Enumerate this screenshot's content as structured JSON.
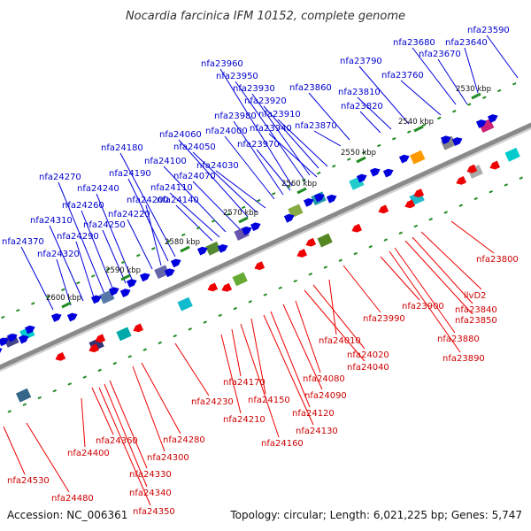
{
  "title": "Nocardia farcinica IFM 10152, complete genome",
  "accession": "Accession: NC_006361",
  "topology": "Topology: circular; Length: 6,021,225 bp; Genes: 5,747",
  "colors": {
    "forward": "#0000dd",
    "reverse": "#ee0000",
    "backbone": "#8a8a8a",
    "tick": "#228b22"
  },
  "kbp_labels": [
    "2530 kbp",
    "2540 kbp",
    "2550 kbp",
    "2560 kbp",
    "2570 kbp",
    "2580 kbp",
    "2590 kbp",
    "2600 kbp"
  ],
  "top_labels": [
    "nfa23590",
    "nfa23640",
    "nfa23670",
    "nfa23680",
    "nfa23760",
    "nfa23790",
    "nfa23810",
    "nfa23820",
    "nfa23860",
    "nfa23870",
    "nfa23910",
    "nfa23920",
    "nfa23930",
    "nfa23940",
    "nfa23950",
    "nfa23960",
    "nfa23970",
    "nfa23980",
    "nfa24000",
    "nfa24030",
    "nfa24050",
    "nfa24060",
    "nfa24070",
    "nfa24100",
    "nfa24110",
    "nfa24140",
    "nfa24180",
    "nfa24190",
    "nfa24200",
    "nfa24220",
    "nfa24240",
    "nfa24250",
    "nfa24260",
    "nfa24270",
    "nfa24290",
    "nfa24310",
    "nfa24320",
    "nfa24370"
  ],
  "bottom_labels": [
    "nfa23800",
    "ilvD2",
    "nfa23840",
    "nfa23850",
    "nfa23880",
    "nfa23890",
    "nfa23900",
    "nfa23990",
    "nfa24010",
    "nfa24020",
    "nfa24040",
    "nfa24080",
    "nfa24090",
    "nfa24120",
    "nfa24130",
    "nfa24150",
    "nfa24160",
    "nfa24170",
    "nfa24210",
    "nfa24230",
    "nfa24280",
    "nfa24300",
    "nfa24330",
    "nfa24340",
    "nfa24350",
    "nfa24360",
    "nfa24400",
    "nfa24480",
    "nfa24530"
  ]
}
